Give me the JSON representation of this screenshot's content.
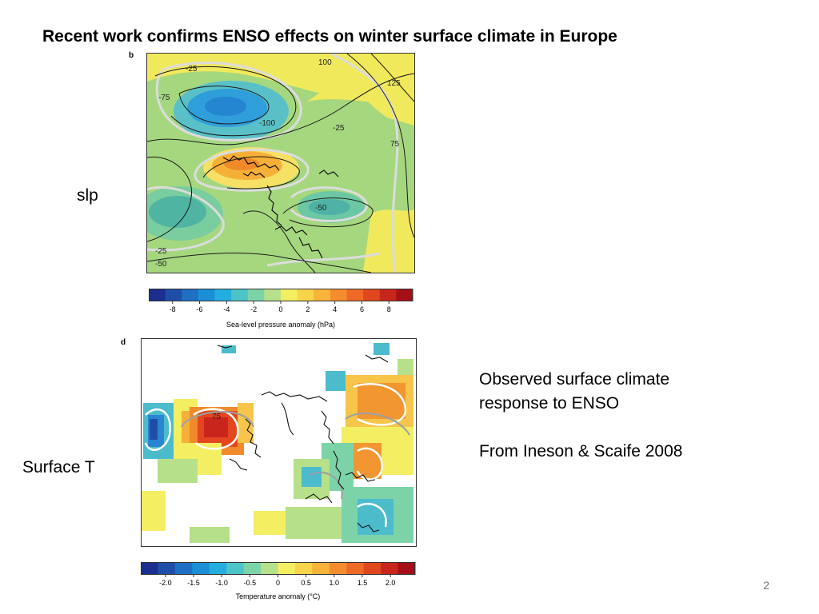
{
  "slide": {
    "title": "Recent work confirms ENSO effects on winter surface climate in Europe",
    "page_number": "2"
  },
  "labels": {
    "slp": "slp",
    "surface_t": "Surface T"
  },
  "description": {
    "line1": "Observed surface climate",
    "line2": "response to ENSO",
    "citation": "From Ineson & Scaife 2008"
  },
  "slp_panel": {
    "letter": "b",
    "contour_labels": [
      "-25",
      "-75",
      "100",
      "125",
      "-100",
      "-25",
      "75",
      "-50",
      "-25",
      "-50"
    ],
    "colorbar": {
      "title": "Sea-level pressure anomaly (hPa)",
      "ticks": [
        "-8",
        "-6",
        "-4",
        "-2",
        "0",
        "2",
        "4",
        "6",
        "8"
      ],
      "colors": [
        "#1a2f8f",
        "#1f4ea8",
        "#1f6fc4",
        "#1b8fd6",
        "#24aee0",
        "#4cc4c8",
        "#7dd3a8",
        "#b7e08a",
        "#f3ee62",
        "#f8d44a",
        "#f9b23a",
        "#f58d2e",
        "#ee6a26",
        "#e0471f",
        "#c8261c",
        "#a51018"
      ]
    }
  },
  "temp_panel": {
    "letter": "d",
    "contour_labels": [
      "75"
    ],
    "colorbar": {
      "title": "Temperature anomaly (°C)",
      "ticks": [
        "-2.0",
        "-1.5",
        "-1.0",
        "-0.5",
        "0",
        "0.5",
        "1.0",
        "1.5",
        "2.0"
      ],
      "colors": [
        "#1a2f8f",
        "#1f4ea8",
        "#1f6fc4",
        "#1b8fd6",
        "#24aee0",
        "#4cc4c8",
        "#7dd3a8",
        "#b7e08a",
        "#f3ee62",
        "#f8d44a",
        "#f9b23a",
        "#f58d2e",
        "#ee6a26",
        "#e0471f",
        "#c8261c",
        "#a51018"
      ]
    }
  }
}
